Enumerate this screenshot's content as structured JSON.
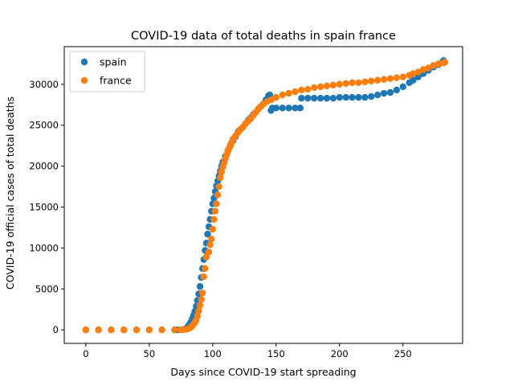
{
  "chart_data": {
    "type": "scatter",
    "title": "COVID-19 data of total deaths in spain france",
    "xlabel": "Days since COVID-19 start spreading",
    "ylabel": "COVID-19 official cases of total deaths",
    "xlim": [
      -17,
      297
    ],
    "ylim": [
      -1650,
      34600
    ],
    "xticks": [
      0,
      50,
      100,
      150,
      200,
      250
    ],
    "yticks": [
      0,
      5000,
      10000,
      15000,
      20000,
      25000,
      30000
    ],
    "grid": false,
    "legend_position": "top-left",
    "series": [
      {
        "name": "spain",
        "color": "#1f77b4",
        "points": [
          [
            0,
            0
          ],
          [
            10,
            0
          ],
          [
            20,
            0
          ],
          [
            30,
            0
          ],
          [
            40,
            0
          ],
          [
            50,
            0
          ],
          [
            60,
            0
          ],
          [
            70,
            0
          ],
          [
            72,
            0
          ],
          [
            75,
            10
          ],
          [
            77,
            50
          ],
          [
            79,
            150
          ],
          [
            80,
            300
          ],
          [
            81,
            500
          ],
          [
            82,
            750
          ],
          [
            83,
            1000
          ],
          [
            84,
            1400
          ],
          [
            85,
            1800
          ],
          [
            86,
            2300
          ],
          [
            87,
            2900
          ],
          [
            88,
            3600
          ],
          [
            89,
            4400
          ],
          [
            90,
            5300
          ],
          [
            91,
            6400
          ],
          [
            92,
            7500
          ],
          [
            93,
            8600
          ],
          [
            94,
            9700
          ],
          [
            95,
            10600
          ],
          [
            96,
            11700
          ],
          [
            97,
            12600
          ],
          [
            98,
            13500
          ],
          [
            99,
            14500
          ],
          [
            100,
            15400
          ],
          [
            101,
            16100
          ],
          [
            102,
            16900
          ],
          [
            103,
            17600
          ],
          [
            104,
            18200
          ],
          [
            105,
            18800
          ],
          [
            106,
            19400
          ],
          [
            107,
            20000
          ],
          [
            108,
            20500
          ],
          [
            110,
            21200
          ],
          [
            112,
            21900
          ],
          [
            114,
            22500
          ],
          [
            116,
            23100
          ],
          [
            118,
            23600
          ],
          [
            120,
            24200
          ],
          [
            122,
            24500
          ],
          [
            124,
            24800
          ],
          [
            126,
            25200
          ],
          [
            128,
            25600
          ],
          [
            130,
            25900
          ],
          [
            132,
            26300
          ],
          [
            134,
            26600
          ],
          [
            136,
            27000
          ],
          [
            138,
            27300
          ],
          [
            140,
            27600
          ],
          [
            142,
            28100
          ],
          [
            144,
            28600
          ],
          [
            145,
            28700
          ],
          [
            146,
            26800
          ],
          [
            147,
            27100
          ],
          [
            150,
            27100
          ],
          [
            155,
            27100
          ],
          [
            160,
            27100
          ],
          [
            165,
            27100
          ],
          [
            169,
            27100
          ],
          [
            170,
            28300
          ],
          [
            175,
            28300
          ],
          [
            180,
            28300
          ],
          [
            185,
            28300
          ],
          [
            190,
            28300
          ],
          [
            195,
            28300
          ],
          [
            200,
            28400
          ],
          [
            205,
            28400
          ],
          [
            210,
            28400
          ],
          [
            215,
            28400
          ],
          [
            220,
            28400
          ],
          [
            225,
            28500
          ],
          [
            230,
            28700
          ],
          [
            235,
            28900
          ],
          [
            240,
            29000
          ],
          [
            245,
            29300
          ],
          [
            250,
            29700
          ],
          [
            255,
            30200
          ],
          [
            258,
            30500
          ],
          [
            262,
            30900
          ],
          [
            266,
            31300
          ],
          [
            270,
            31700
          ],
          [
            274,
            32100
          ],
          [
            278,
            32400
          ],
          [
            281,
            32700
          ],
          [
            282,
            32900
          ]
        ]
      },
      {
        "name": "france",
        "color": "#ff7f0e",
        "points": [
          [
            0,
            0
          ],
          [
            10,
            0
          ],
          [
            20,
            0
          ],
          [
            30,
            0
          ],
          [
            40,
            0
          ],
          [
            50,
            0
          ],
          [
            60,
            0
          ],
          [
            70,
            0
          ],
          [
            75,
            10
          ],
          [
            78,
            50
          ],
          [
            80,
            100
          ],
          [
            81,
            170
          ],
          [
            82,
            250
          ],
          [
            83,
            350
          ],
          [
            84,
            500
          ],
          [
            85,
            700
          ],
          [
            86,
            900
          ],
          [
            87,
            1200
          ],
          [
            88,
            1700
          ],
          [
            89,
            2300
          ],
          [
            90,
            3000
          ],
          [
            91,
            3700
          ],
          [
            92,
            4500
          ],
          [
            93,
            6500
          ],
          [
            94,
            7500
          ],
          [
            95,
            8900
          ],
          [
            97,
            9500
          ],
          [
            98,
            10400
          ],
          [
            99,
            11100
          ],
          [
            100,
            12300
          ],
          [
            101,
            13500
          ],
          [
            102,
            14500
          ],
          [
            103,
            15400
          ],
          [
            104,
            16500
          ],
          [
            105,
            17500
          ],
          [
            106,
            18600
          ],
          [
            107,
            19300
          ],
          [
            108,
            19900
          ],
          [
            109,
            20400
          ],
          [
            110,
            20900
          ],
          [
            111,
            21400
          ],
          [
            112,
            21800
          ],
          [
            113,
            22200
          ],
          [
            114,
            22600
          ],
          [
            115,
            22900
          ],
          [
            116,
            23300
          ],
          [
            118,
            23700
          ],
          [
            120,
            24100
          ],
          [
            122,
            24500
          ],
          [
            124,
            24800
          ],
          [
            126,
            25200
          ],
          [
            128,
            25500
          ],
          [
            130,
            25800
          ],
          [
            132,
            26200
          ],
          [
            134,
            26600
          ],
          [
            136,
            27000
          ],
          [
            138,
            27300
          ],
          [
            140,
            27600
          ],
          [
            143,
            27900
          ],
          [
            146,
            28100
          ],
          [
            150,
            28400
          ],
          [
            155,
            28700
          ],
          [
            160,
            28900
          ],
          [
            165,
            29100
          ],
          [
            170,
            29300
          ],
          [
            175,
            29400
          ],
          [
            180,
            29600
          ],
          [
            185,
            29700
          ],
          [
            190,
            29800
          ],
          [
            195,
            29900
          ],
          [
            200,
            30000
          ],
          [
            205,
            30100
          ],
          [
            210,
            30200
          ],
          [
            215,
            30200
          ],
          [
            220,
            30300
          ],
          [
            225,
            30400
          ],
          [
            230,
            30500
          ],
          [
            235,
            30600
          ],
          [
            240,
            30700
          ],
          [
            245,
            30800
          ],
          [
            250,
            30900
          ],
          [
            255,
            31100
          ],
          [
            258,
            31300
          ],
          [
            262,
            31500
          ],
          [
            266,
            31800
          ],
          [
            270,
            32000
          ],
          [
            274,
            32300
          ],
          [
            278,
            32500
          ],
          [
            282,
            32600
          ],
          [
            283,
            32700
          ]
        ]
      }
    ]
  }
}
